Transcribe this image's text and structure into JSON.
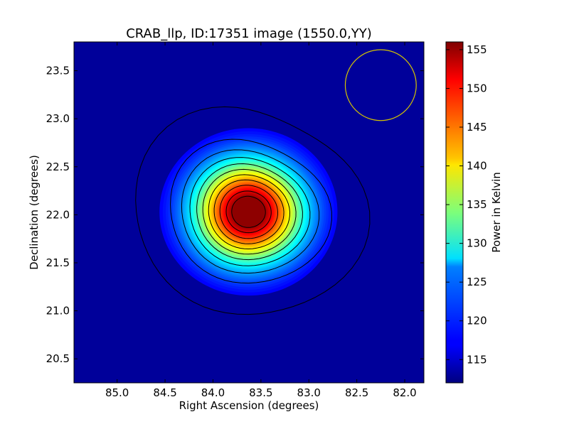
{
  "chart_data": {
    "type": "heatmap",
    "title": "CRAB_llp, ID:17351 image (1550.0,YY)",
    "xlabel": "Right Ascension (degrees)",
    "ylabel": "Declination (degrees)",
    "xlim": [
      85.45,
      81.8
    ],
    "ylim": [
      20.25,
      23.8
    ],
    "x_ticks": [
      85.0,
      84.5,
      84.0,
      83.5,
      83.0,
      82.5,
      82.0
    ],
    "x_tick_labels": [
      "85.0",
      "84.5",
      "84.0",
      "83.5",
      "83.0",
      "82.5",
      "82.0"
    ],
    "y_ticks": [
      20.5,
      21.0,
      21.5,
      22.0,
      22.5,
      23.0,
      23.5
    ],
    "y_tick_labels": [
      "20.5",
      "21.0",
      "21.5",
      "22.0",
      "22.5",
      "23.0",
      "23.5"
    ],
    "colorbar": {
      "label": "Power in Kelvin",
      "min": 112,
      "max": 156,
      "ticks": [
        115,
        120,
        125,
        130,
        135,
        140,
        145,
        150,
        155
      ],
      "tick_labels": [
        "115",
        "120",
        "125",
        "130",
        "135",
        "140",
        "145",
        "150",
        "155"
      ],
      "colormap": "jet"
    },
    "source_peak": {
      "ra": 83.63,
      "dec": 22.03,
      "value": 156
    },
    "beam_circle": {
      "ra": 82.25,
      "dec": 23.35,
      "radius_deg": 0.37,
      "color": "#d4c400"
    },
    "contour_levels": [
      115,
      120,
      124,
      128,
      132,
      136,
      140,
      144,
      148,
      152,
      155
    ],
    "grid": false
  }
}
